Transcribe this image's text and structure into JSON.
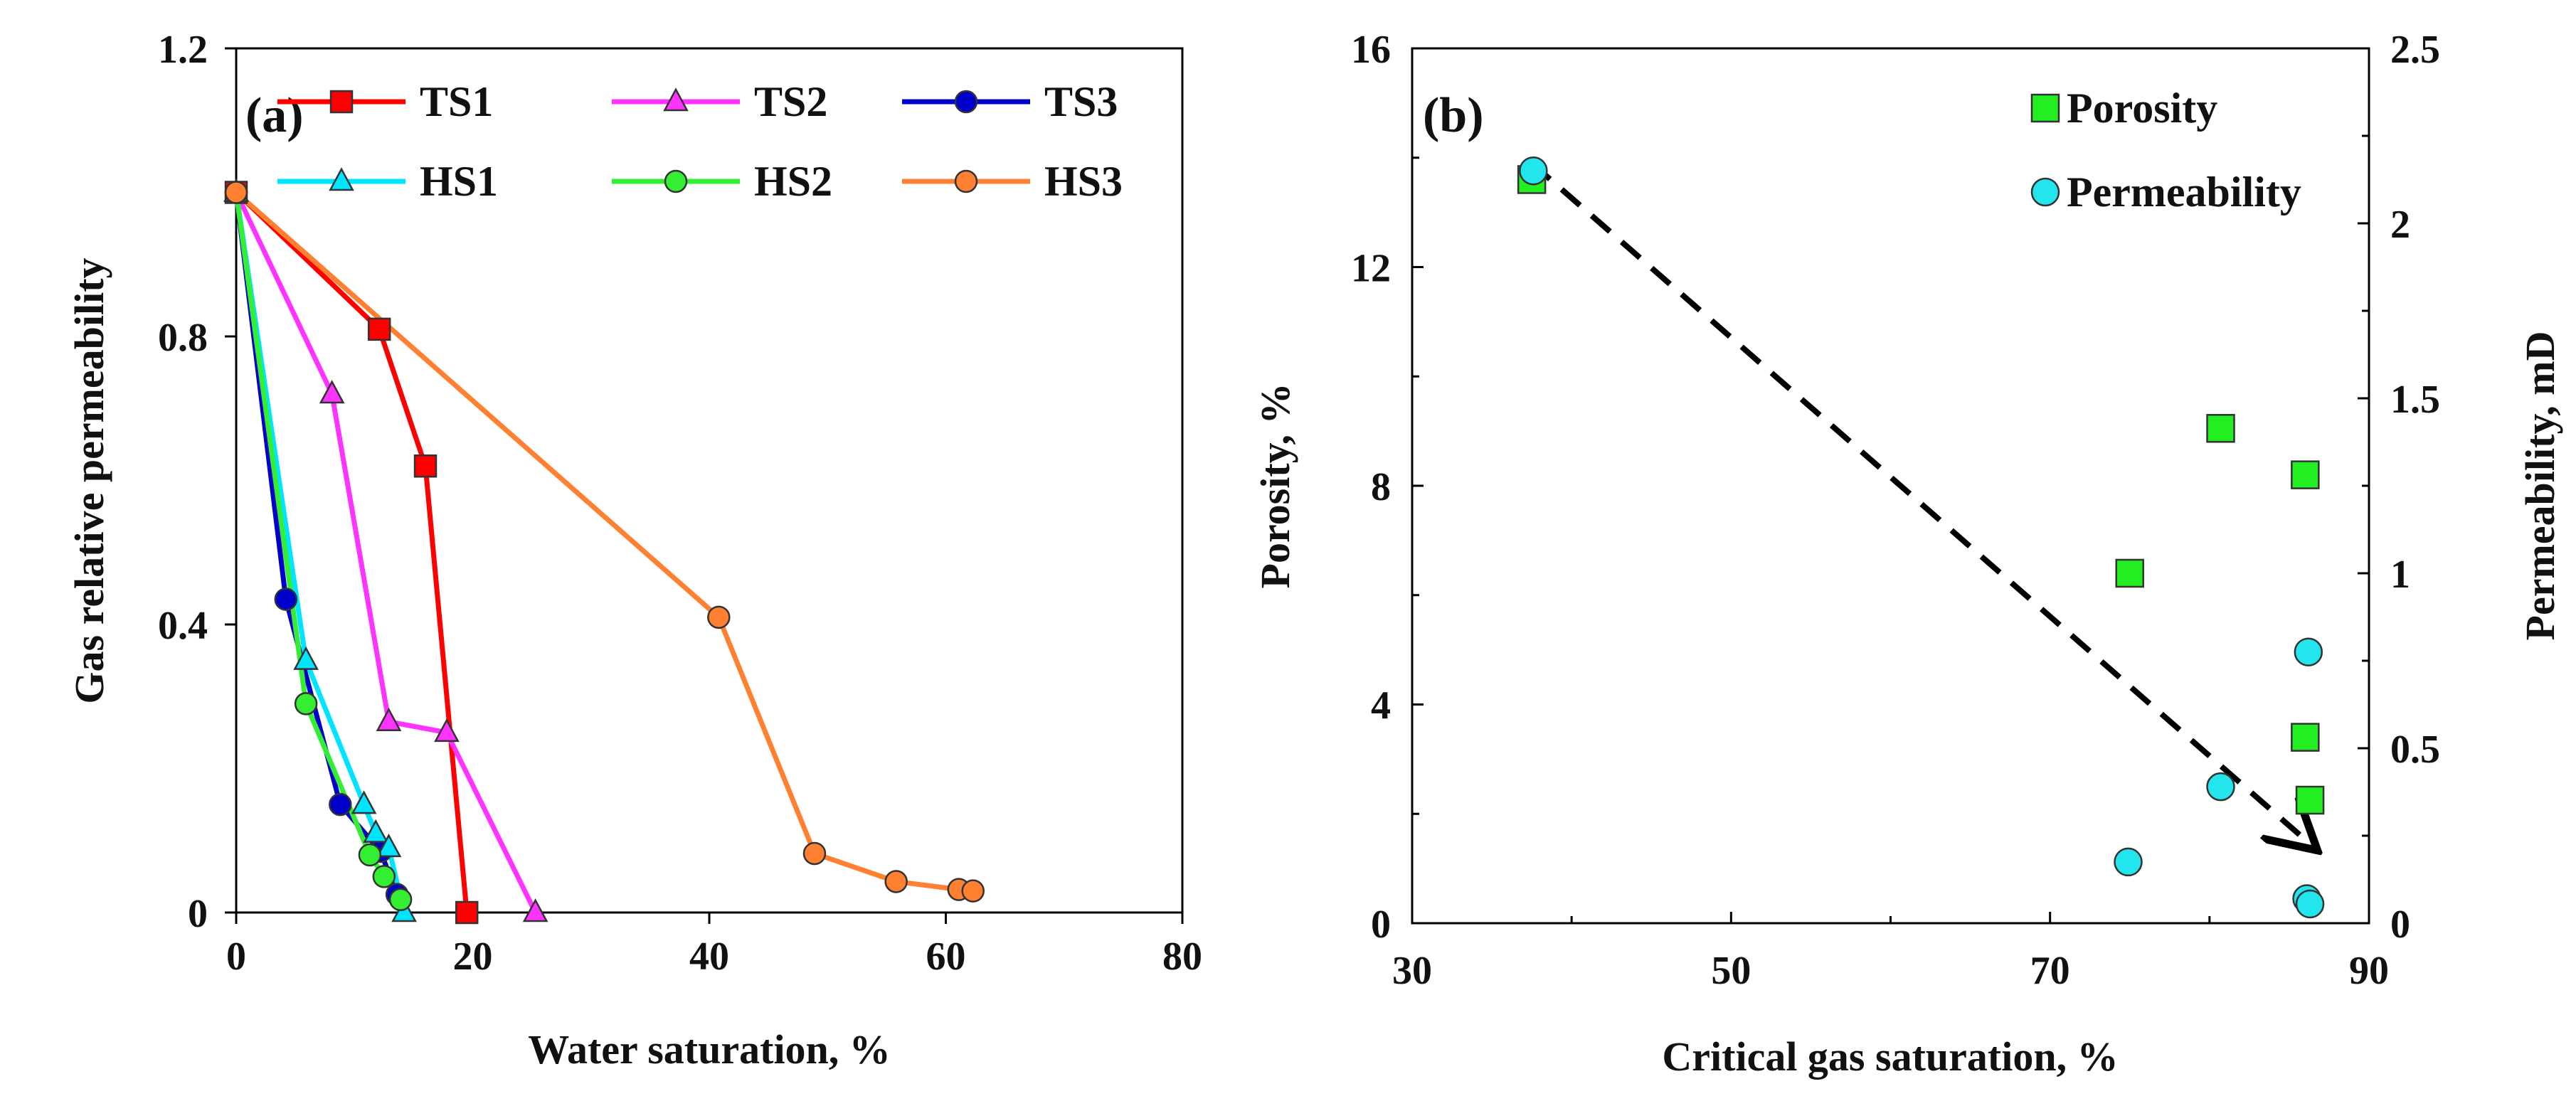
{
  "chart_data": [
    {
      "panel": "(a)",
      "type": "line",
      "title": "",
      "xlabel": "Water saturation, %",
      "ylabel": "Gas relative permeability",
      "xlim": [
        0,
        80
      ],
      "ylim": [
        0,
        1.2
      ],
      "xticks": [
        "0",
        "20",
        "40",
        "60",
        "80"
      ],
      "yticks": [
        "0",
        "0.4",
        "0.8",
        "1.2"
      ],
      "legend_position": "top",
      "series": [
        {
          "name": "TS1",
          "color": "#ff0000",
          "marker": "square",
          "x": [
            0,
            12.1,
            16.0,
            19.5
          ],
          "y": [
            1.0,
            0.81,
            0.62,
            0.0
          ]
        },
        {
          "name": "TS2",
          "color": "#ff33ff",
          "marker": "triangle",
          "x": [
            0,
            8.1,
            12.9,
            17.8,
            25.3
          ],
          "y": [
            1.0,
            0.72,
            0.265,
            0.25,
            0.0
          ]
        },
        {
          "name": "TS3",
          "color": "#0000cc",
          "marker": "circle",
          "x": [
            0,
            4.2,
            8.8,
            12.2,
            13.6
          ],
          "y": [
            1.0,
            0.435,
            0.15,
            0.085,
            0.025
          ]
        },
        {
          "name": "HS1",
          "color": "#00e5ff",
          "marker": "triangle",
          "x": [
            0,
            5.9,
            10.8,
            11.8,
            12.9,
            14.2
          ],
          "y": [
            1.0,
            0.35,
            0.15,
            0.11,
            0.09,
            0.0
          ]
        },
        {
          "name": "HS2",
          "color": "#33ee33",
          "marker": "circle",
          "x": [
            0,
            5.9,
            11.3,
            12.5,
            13.9
          ],
          "y": [
            1.0,
            0.29,
            0.08,
            0.05,
            0.018
          ]
        },
        {
          "name": "HS3",
          "color": "#ff8030",
          "marker": "circle",
          "x": [
            0,
            40.8,
            48.9,
            55.8,
            61.1,
            62.3
          ],
          "y": [
            1.0,
            0.41,
            0.082,
            0.043,
            0.032,
            0.03
          ]
        }
      ]
    },
    {
      "panel": "(b)",
      "type": "scatter",
      "title": "",
      "xlabel": "Critical gas saturation, %",
      "ylabel": "Porosity, %",
      "y2label": "Permeability, mD",
      "xlim": [
        30,
        90
      ],
      "ylim": [
        0,
        16
      ],
      "y2lim": [
        0,
        2.5
      ],
      "xticks": [
        "30",
        "50",
        "70",
        "90"
      ],
      "yticks": [
        "0",
        "4",
        "8",
        "12",
        "16"
      ],
      "y2ticks": [
        "0",
        "0.5",
        "1",
        "1.5",
        "2",
        "2.5"
      ],
      "legend_position": "top-right",
      "series": [
        {
          "name": "Porosity",
          "axis": "left",
          "color": "#22ee22",
          "marker": "square",
          "x": [
            37.5,
            75.0,
            80.7,
            86.0,
            86.0,
            86.3
          ],
          "y": [
            13.6,
            6.4,
            9.05,
            8.2,
            3.4,
            2.25
          ]
        },
        {
          "name": "Permeability",
          "axis": "right",
          "color": "#22e5ee",
          "marker": "circle",
          "x": [
            37.6,
            74.9,
            80.7,
            86.2,
            86.1,
            86.3
          ],
          "y": [
            2.15,
            0.175,
            0.39,
            0.775,
            0.07,
            0.055
          ]
        }
      ],
      "annotation": {
        "type": "dashed-arrow",
        "from": [
          37.5,
          13.9
        ],
        "to": [
          86.5,
          1.4
        ],
        "note": "trend"
      }
    }
  ]
}
